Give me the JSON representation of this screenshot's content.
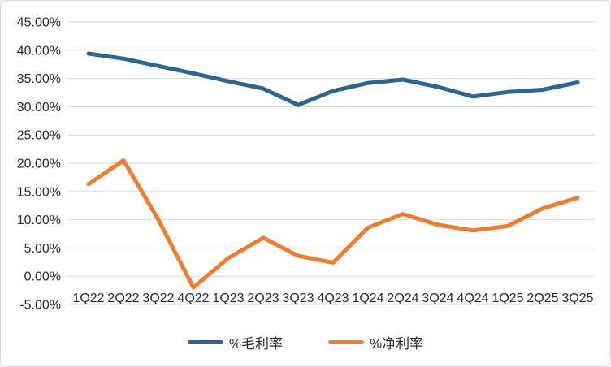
{
  "chart": {
    "background": "#FFFFFF",
    "border_color": "#D9D9D9",
    "gridline_color": "#D9D9D9",
    "text_color": "#2B2B2B"
  },
  "chart_data": {
    "type": "line",
    "title": "",
    "xlabel": "",
    "ylabel": "",
    "grid": true,
    "legend_position": "bottom",
    "ylim": [
      -5,
      45
    ],
    "ytick_step": 5,
    "ytick_labels": [
      "45.00%",
      "40.00%",
      "35.00%",
      "30.00%",
      "25.00%",
      "20.00%",
      "15.00%",
      "10.00%",
      "5.00%",
      "0.00%",
      "-5.00%"
    ],
    "categories": [
      "1Q22",
      "2Q22",
      "3Q22",
      "4Q22",
      "1Q23",
      "2Q23",
      "3Q23",
      "4Q23",
      "1Q24",
      "2Q24",
      "3Q24",
      "4Q24",
      "1Q25",
      "2Q25",
      "3Q25"
    ],
    "series": [
      {
        "key": "gross_margin",
        "name": "%毛利率",
        "color": "#2D6591",
        "values": [
          39.4,
          38.5,
          37.2,
          35.9,
          34.5,
          33.2,
          30.3,
          32.8,
          34.2,
          34.8,
          33.5,
          31.8,
          32.6,
          33.0,
          34.3
        ]
      },
      {
        "key": "net_margin",
        "name": "%净利率",
        "color": "#ED7D31",
        "values": [
          16.3,
          20.5,
          10.0,
          -2.0,
          3.2,
          6.8,
          3.6,
          2.4,
          8.6,
          11.0,
          9.1,
          8.1,
          8.9,
          12.0,
          13.9
        ]
      }
    ]
  }
}
